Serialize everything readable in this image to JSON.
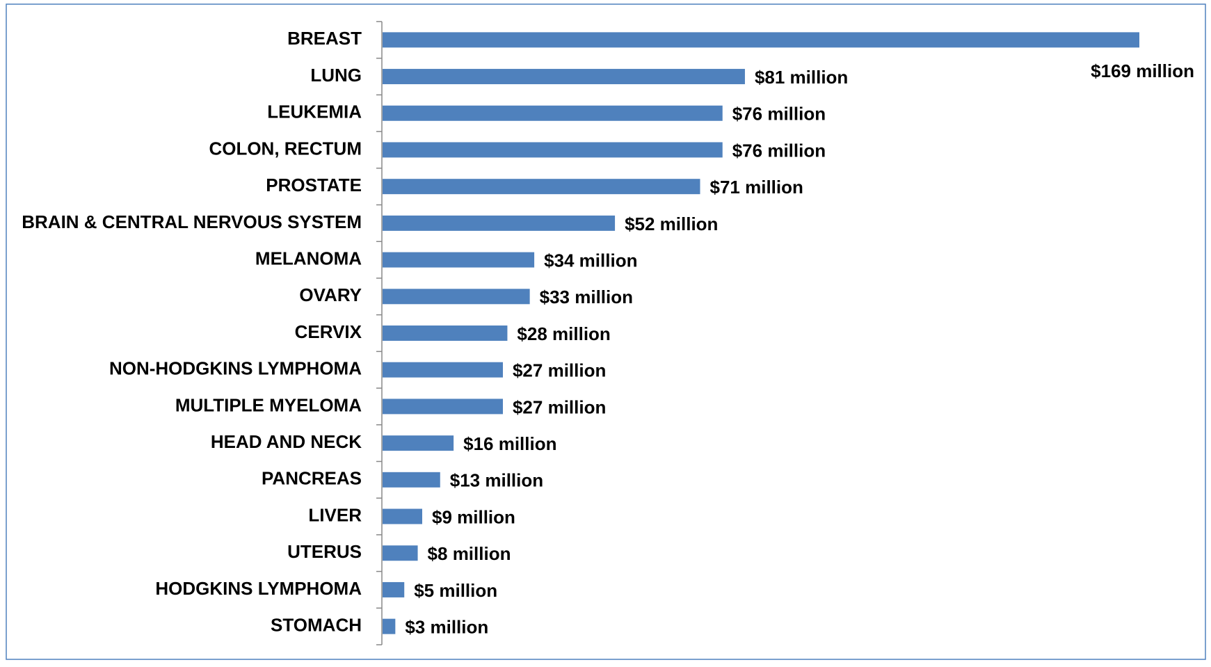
{
  "chart_data": {
    "type": "bar",
    "orientation": "horizontal",
    "color": "#4f81bd",
    "categories": [
      "BREAST",
      "LUNG",
      "LEUKEMIA",
      "COLON, RECTUM",
      "PROSTATE",
      "BRAIN & CENTRAL NERVOUS SYSTEM",
      "MELANOMA",
      "OVARY",
      "CERVIX",
      "NON-HODGKINS LYMPHOMA",
      "MULTIPLE MYELOMA",
      "HEAD AND NECK",
      "PANCREAS",
      "LIVER",
      "UTERUS",
      "HODGKINS LYMPHOMA",
      "STOMACH"
    ],
    "values": [
      169,
      81,
      76,
      76,
      71,
      52,
      34,
      33,
      28,
      27,
      27,
      16,
      13,
      9,
      8,
      5,
      3
    ],
    "value_labels": [
      "$169 million",
      "$81 million",
      "$76 million",
      "$76 million",
      "$71 million",
      "$52 million",
      "$34 million",
      "$33 million",
      "$28 million",
      "$27 million",
      "$27 million",
      "$16 million",
      "$13 million",
      "$9 million",
      "$8 million",
      "$5 million",
      "$3 million"
    ]
  }
}
